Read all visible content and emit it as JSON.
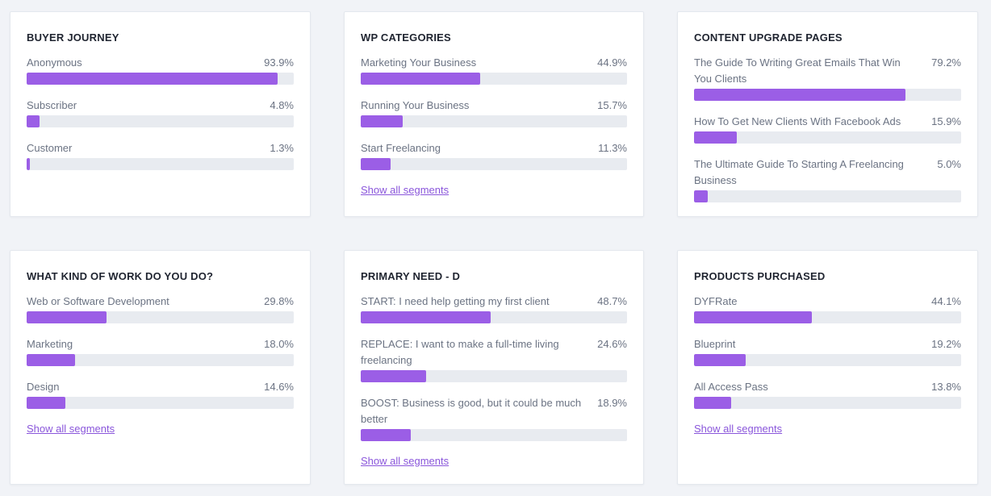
{
  "colors": {
    "bar_fill": "#9b5ee6",
    "bar_track": "#e8ebf0",
    "link": "#8a56db"
  },
  "cards": [
    {
      "title": "BUYER JOURNEY",
      "segments": [
        {
          "label": "Anonymous",
          "value": "93.9%",
          "fraction": 0.939
        },
        {
          "label": "Subscriber",
          "value": "4.8%",
          "fraction": 0.048
        },
        {
          "label": "Customer",
          "value": "1.3%",
          "fraction": 0.013
        }
      ],
      "show_all": ""
    },
    {
      "title": "WP CATEGORIES",
      "segments": [
        {
          "label": "Marketing Your Business",
          "value": "44.9%",
          "fraction": 0.449
        },
        {
          "label": "Running Your Business",
          "value": "15.7%",
          "fraction": 0.157
        },
        {
          "label": "Start Freelancing",
          "value": "11.3%",
          "fraction": 0.113
        }
      ],
      "show_all": "Show all segments"
    },
    {
      "title": "CONTENT UPGRADE PAGES",
      "segments": [
        {
          "label": "The Guide To Writing Great Emails That Win You Clients",
          "value": "79.2%",
          "fraction": 0.792
        },
        {
          "label": "How To Get New Clients With Facebook Ads",
          "value": "15.9%",
          "fraction": 0.159
        },
        {
          "label": "The Ultimate Guide To Starting A Freelancing Business",
          "value": "5.0%",
          "fraction": 0.05
        }
      ],
      "show_all": ""
    },
    {
      "title": "WHAT KIND OF WORK DO YOU DO?",
      "segments": [
        {
          "label": "Web or Software Development",
          "value": "29.8%",
          "fraction": 0.298
        },
        {
          "label": "Marketing",
          "value": "18.0%",
          "fraction": 0.18
        },
        {
          "label": "Design",
          "value": "14.6%",
          "fraction": 0.146
        }
      ],
      "show_all": "Show all segments"
    },
    {
      "title": "PRIMARY NEED - D",
      "segments": [
        {
          "label": "START: I need help getting my first client",
          "value": "48.7%",
          "fraction": 0.487
        },
        {
          "label": "REPLACE: I want to make a full-time living freelancing",
          "value": "24.6%",
          "fraction": 0.246
        },
        {
          "label": "BOOST: Business is good, but it could be much better",
          "value": "18.9%",
          "fraction": 0.189
        }
      ],
      "show_all": "Show all segments"
    },
    {
      "title": "PRODUCTS PURCHASED",
      "segments": [
        {
          "label": "DYFRate",
          "value": "44.1%",
          "fraction": 0.441
        },
        {
          "label": "Blueprint",
          "value": "19.2%",
          "fraction": 0.192
        },
        {
          "label": "All Access Pass",
          "value": "13.8%",
          "fraction": 0.138
        }
      ],
      "show_all": "Show all segments"
    }
  ]
}
